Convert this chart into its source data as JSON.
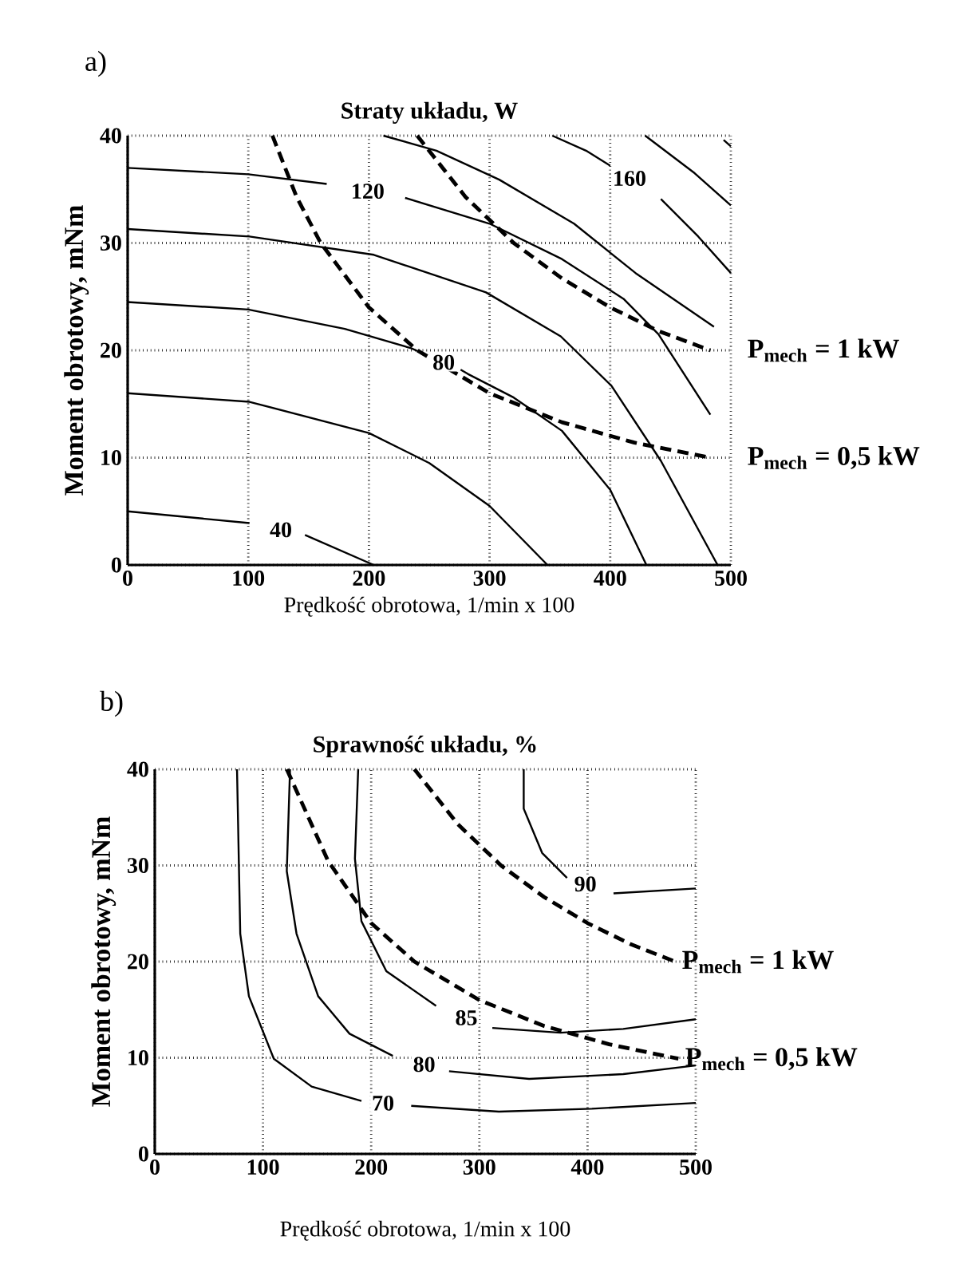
{
  "chart_data": [
    {
      "type": "line",
      "title": "Straty układu, W",
      "xlabel": "Prędkość obrotowa, 1/min x 100",
      "ylabel": "Moment obrotowy, mNm",
      "xlim": [
        0,
        500
      ],
      "ylim": [
        0,
        40
      ],
      "xticks": [
        0,
        100,
        200,
        300,
        400,
        500
      ],
      "yticks": [
        0,
        10,
        20,
        30,
        40
      ],
      "grid": true,
      "marker": "none",
      "annotations": [
        "a)"
      ],
      "series": [
        {
          "name": "40",
          "color": "#000000",
          "line_style": "solid",
          "x": [
            0,
            101,
            127,
            147,
            204
          ],
          "values": [
            5,
            3.9,
            null,
            2.8,
            0
          ]
        },
        {
          "color": "#000000",
          "line_style": "solid",
          "x": [
            0,
            101,
            200,
            250,
            300,
            348
          ],
          "values": [
            16,
            15.2,
            12.3,
            9.5,
            5.5,
            0
          ]
        },
        {
          "name": "80",
          "color": "#000000",
          "line_style": "solid",
          "x": [
            0,
            100,
            180,
            235,
            245,
            262,
            276,
            282,
            320,
            360,
            400,
            430
          ],
          "values": [
            24.5,
            23.8,
            22,
            20.2,
            19.7,
            null,
            18.2,
            17.8,
            15.6,
            12.5,
            7,
            0
          ]
        },
        {
          "color": "#000000",
          "line_style": "solid",
          "x": [
            0,
            101,
            204,
            297,
            359,
            401,
            442,
            489
          ],
          "values": [
            31.3,
            30.6,
            28.9,
            25.4,
            21.3,
            16.7,
            9.7,
            0
          ]
        },
        {
          "name": "120",
          "color": "#000000",
          "line_style": "solid",
          "x": [
            0,
            100,
            165,
            199,
            230,
            300,
            360,
            411,
            440,
            483
          ],
          "values": [
            37,
            36.4,
            35.5,
            null,
            34.2,
            31.8,
            28.5,
            24.8,
            21.5,
            14
          ]
        },
        {
          "color": "#000000",
          "line_style": "solid",
          "x": [
            212,
            256,
            308,
            370,
            421,
            486
          ],
          "values": [
            40,
            38.6,
            35.9,
            31.8,
            27.2,
            22.2
          ]
        },
        {
          "name": "160",
          "color": "#000000",
          "line_style": "solid",
          "x": [
            352,
            380,
            400,
            416,
            442,
            473,
            500
          ],
          "values": [
            40,
            38.6,
            37.2,
            null,
            34.1,
            30.6,
            27.2
          ]
        },
        {
          "color": "#000000",
          "line_style": "solid",
          "x": [
            429,
            470,
            500
          ],
          "values": [
            40,
            36.5,
            33.5
          ]
        },
        {
          "color": "#000000",
          "line_style": "solid",
          "x": [
            494,
            500
          ],
          "values": [
            39.6,
            39
          ]
        },
        {
          "name": "P$_{mech}$ = 1 kW",
          "color": "#000000",
          "line_style": "dashed",
          "x": [
            240,
            280,
            320,
            360,
            400,
            440,
            483
          ],
          "values": [
            40,
            34.3,
            30,
            26.7,
            24,
            21.8,
            20
          ]
        },
        {
          "name": "P$_{mech}$ = 0,5 kW",
          "color": "#000000",
          "line_style": "dashed",
          "x": [
            120,
            140,
            160,
            200,
            240,
            300,
            360,
            420,
            483
          ],
          "values": [
            40,
            34.3,
            30,
            24,
            20,
            16,
            13.3,
            11.4,
            10
          ]
        }
      ]
    },
    {
      "type": "line",
      "title": "Sprawność układu, %",
      "xlabel": "Prędkość obrotowa, 1/min x 100",
      "ylabel": "Moment obrotowy, mNm",
      "xlim": [
        0,
        500
      ],
      "ylim": [
        0,
        40
      ],
      "xticks": [
        0,
        100,
        200,
        300,
        400,
        500
      ],
      "yticks": [
        0,
        10,
        20,
        30,
        40
      ],
      "grid": true,
      "marker": "none",
      "annotations": [
        "b)"
      ],
      "series": [
        {
          "name": "70",
          "color": "#000000",
          "line_style": "solid",
          "x": [
            76,
            79,
            87,
            110,
            145,
            191,
            211,
            237,
            318,
            404,
            500
          ],
          "values": [
            40,
            22.9,
            16.4,
            9.9,
            7,
            5.5,
            null,
            5,
            4.4,
            4.7,
            5.3
          ]
        },
        {
          "name": "80",
          "color": "#000000",
          "line_style": "solid",
          "x": [
            125,
            122,
            131,
            151,
            180,
            220,
            249,
            272,
            346,
            433,
            500
          ],
          "values": [
            40,
            29.4,
            22.9,
            16.4,
            12.5,
            10.2,
            null,
            8.6,
            7.8,
            8.3,
            9.2
          ]
        },
        {
          "name": "85",
          "color": "#000000",
          "line_style": "solid",
          "x": [
            188,
            185,
            191,
            214,
            260,
            288,
            312,
            375,
            433,
            500
          ],
          "values": [
            40,
            30.7,
            24.2,
            19,
            15.4,
            null,
            13.1,
            12.6,
            13,
            14
          ]
        },
        {
          "name": "90",
          "color": "#000000",
          "line_style": "solid",
          "x": [
            341,
            341,
            358,
            381,
            398,
            424,
            500
          ],
          "values": [
            40,
            35.9,
            31.3,
            28.7,
            null,
            27.1,
            27.6
          ]
        },
        {
          "name": "P$_{mech}$ = 1 kW",
          "color": "#000000",
          "line_style": "dashed",
          "x": [
            240,
            280,
            320,
            360,
            400,
            440,
            481
          ],
          "values": [
            40,
            34.3,
            30,
            26.7,
            24,
            21.8,
            20
          ]
        },
        {
          "name": "P$_{mech}$ = 0,5 kW",
          "color": "#000000",
          "line_style": "dashed",
          "x": [
            122,
            160,
            200,
            240,
            300,
            360,
            420,
            484
          ],
          "values": [
            40,
            30.5,
            24,
            20,
            16,
            13.3,
            11.4,
            9.9
          ]
        }
      ]
    }
  ]
}
